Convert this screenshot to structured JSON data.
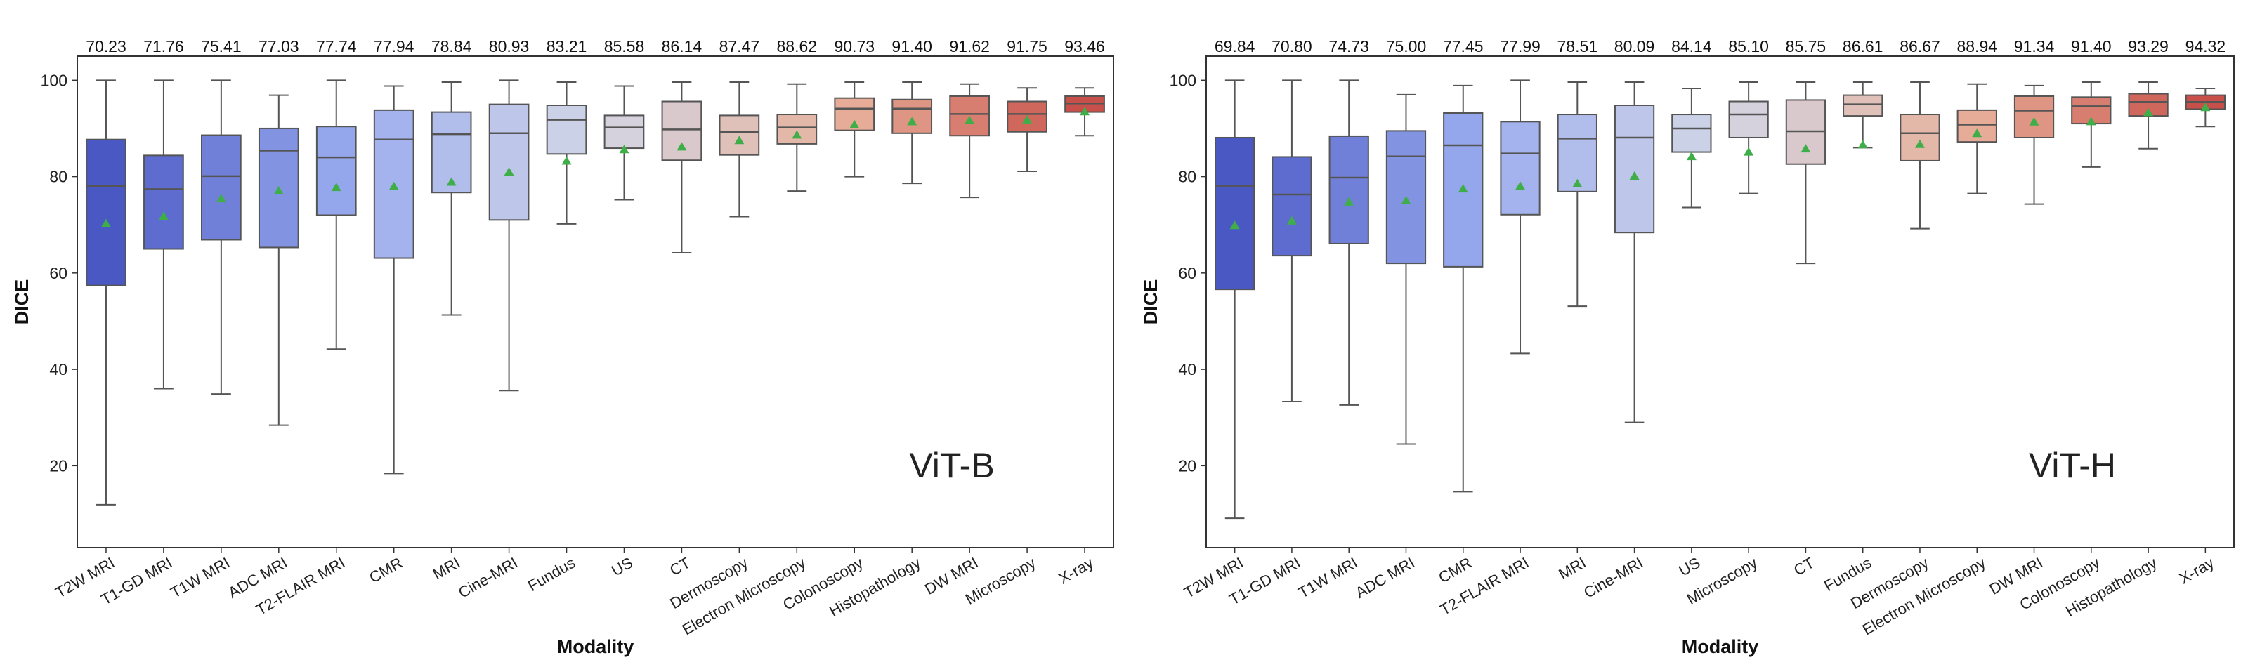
{
  "chart_data": [
    {
      "type": "box",
      "panel_label": "ViT-B",
      "xlabel": "Modality",
      "ylabel": "DICE",
      "ylim": [
        3,
        105
      ],
      "yticks": [
        20,
        40,
        60,
        80,
        100
      ],
      "color_scale": [
        "#4a58c4",
        "#9aacee",
        "#d2d6e6",
        "#e8b29c",
        "#c8504a"
      ],
      "categories": [
        "T2W MRI",
        "T1-GD MRI",
        "T1W MRI",
        "ADC MRI",
        "T2-FLAIR MRI",
        "CMR",
        "MRI",
        "Cine-MRI",
        "Fundus",
        "US",
        "CT",
        "Dermoscopy",
        "Electron Microscopy",
        "Colonoscopy",
        "Histopathology",
        "DW MRI",
        "Microscopy",
        "X-ray"
      ],
      "means": [
        "70.23",
        "71.76",
        "75.41",
        "77.03",
        "77.74",
        "77.94",
        "78.84",
        "80.93",
        "83.21",
        "85.58",
        "86.14",
        "87.47",
        "88.62",
        "90.73",
        "91.40",
        "91.62",
        "91.75",
        "93.46"
      ],
      "boxes": [
        {
          "q1": 57.4,
          "median": 78.0,
          "q3": 87.7,
          "whislo": 11.9,
          "whishi": 100
        },
        {
          "q1": 65.0,
          "median": 77.4,
          "q3": 84.4,
          "whislo": 36.0,
          "whishi": 100
        },
        {
          "q1": 66.9,
          "median": 80.1,
          "q3": 88.6,
          "whislo": 34.9,
          "whishi": 100
        },
        {
          "q1": 65.3,
          "median": 85.4,
          "q3": 90.0,
          "whislo": 28.4,
          "whishi": 96.9
        },
        {
          "q1": 72.0,
          "median": 84.0,
          "q3": 90.4,
          "whislo": 44.2,
          "whishi": 100
        },
        {
          "q1": 63.1,
          "median": 87.7,
          "q3": 93.8,
          "whislo": 18.4,
          "whishi": 98.8
        },
        {
          "q1": 76.7,
          "median": 88.8,
          "q3": 93.4,
          "whislo": 51.3,
          "whishi": 99.6
        },
        {
          "q1": 71.0,
          "median": 89.0,
          "q3": 95.0,
          "whislo": 35.6,
          "whishi": 100
        },
        {
          "q1": 84.7,
          "median": 91.8,
          "q3": 94.8,
          "whislo": 70.2,
          "whishi": 99.6
        },
        {
          "q1": 85.9,
          "median": 90.2,
          "q3": 92.7,
          "whislo": 75.2,
          "whishi": 98.8
        },
        {
          "q1": 83.4,
          "median": 89.8,
          "q3": 95.6,
          "whislo": 64.2,
          "whishi": 99.6
        },
        {
          "q1": 84.5,
          "median": 89.3,
          "q3": 92.7,
          "whislo": 71.7,
          "whishi": 99.6
        },
        {
          "q1": 86.8,
          "median": 90.2,
          "q3": 92.9,
          "whislo": 77.0,
          "whishi": 99.2
        },
        {
          "q1": 89.6,
          "median": 94.1,
          "q3": 96.3,
          "whislo": 80.0,
          "whishi": 99.6
        },
        {
          "q1": 89.0,
          "median": 94.1,
          "q3": 96.0,
          "whislo": 78.6,
          "whishi": 99.6
        },
        {
          "q1": 88.5,
          "median": 93.0,
          "q3": 96.7,
          "whislo": 75.7,
          "whishi": 99.2
        },
        {
          "q1": 89.3,
          "median": 93.0,
          "q3": 95.6,
          "whislo": 81.1,
          "whishi": 98.4
        },
        {
          "q1": 93.4,
          "median": 95.2,
          "q3": 96.7,
          "whislo": 88.5,
          "whishi": 98.4
        }
      ]
    },
    {
      "type": "box",
      "panel_label": "ViT-H",
      "xlabel": "Modality",
      "ylabel": "DICE",
      "ylim": [
        3,
        105
      ],
      "yticks": [
        20,
        40,
        60,
        80,
        100
      ],
      "color_scale": [
        "#4a58c4",
        "#9aacee",
        "#d2d6e6",
        "#e8b29c",
        "#c8504a"
      ],
      "categories": [
        "T2W MRI",
        "T1-GD MRI",
        "T1W MRI",
        "ADC MRI",
        "CMR",
        "T2-FLAIR MRI",
        "MRI",
        "Cine-MRI",
        "US",
        "Microscopy",
        "CT",
        "Fundus",
        "Dermoscopy",
        "Electron Microscopy",
        "DW MRI",
        "Colonoscopy",
        "Histopathology",
        "X-ray"
      ],
      "means": [
        "69.84",
        "70.80",
        "74.73",
        "75.00",
        "77.45",
        "77.99",
        "78.51",
        "80.09",
        "84.14",
        "85.10",
        "85.75",
        "86.61",
        "86.67",
        "88.94",
        "91.34",
        "91.40",
        "93.29",
        "94.32"
      ],
      "boxes": [
        {
          "q1": 56.6,
          "median": 78.1,
          "q3": 88.1,
          "whislo": 9.1,
          "whishi": 100
        },
        {
          "q1": 63.6,
          "median": 76.3,
          "q3": 84.1,
          "whislo": 33.3,
          "whishi": 100
        },
        {
          "q1": 66.1,
          "median": 79.8,
          "q3": 88.4,
          "whislo": 32.6,
          "whishi": 100
        },
        {
          "q1": 62.0,
          "median": 84.2,
          "q3": 89.5,
          "whislo": 24.5,
          "whishi": 97.0
        },
        {
          "q1": 61.3,
          "median": 86.5,
          "q3": 93.2,
          "whislo": 14.6,
          "whishi": 98.9
        },
        {
          "q1": 72.1,
          "median": 84.8,
          "q3": 91.4,
          "whislo": 43.3,
          "whishi": 100
        },
        {
          "q1": 76.9,
          "median": 87.9,
          "q3": 92.9,
          "whislo": 53.1,
          "whishi": 99.6
        },
        {
          "q1": 68.4,
          "median": 88.1,
          "q3": 94.8,
          "whislo": 29.0,
          "whishi": 99.6
        },
        {
          "q1": 85.1,
          "median": 90.0,
          "q3": 92.9,
          "whislo": 73.6,
          "whishi": 98.3
        },
        {
          "q1": 88.1,
          "median": 92.9,
          "q3": 95.6,
          "whislo": 76.5,
          "whishi": 99.6
        },
        {
          "q1": 82.6,
          "median": 89.4,
          "q3": 95.9,
          "whislo": 62.0,
          "whishi": 99.6
        },
        {
          "q1": 92.6,
          "median": 95.0,
          "q3": 96.9,
          "whislo": 86.0,
          "whishi": 99.6
        },
        {
          "q1": 83.3,
          "median": 89.0,
          "q3": 92.9,
          "whislo": 69.2,
          "whishi": 99.6
        },
        {
          "q1": 87.2,
          "median": 90.8,
          "q3": 93.8,
          "whislo": 76.5,
          "whishi": 99.2
        },
        {
          "q1": 88.1,
          "median": 93.7,
          "q3": 96.7,
          "whislo": 74.3,
          "whishi": 98.9
        },
        {
          "q1": 91.0,
          "median": 94.6,
          "q3": 96.5,
          "whislo": 82.0,
          "whishi": 99.6
        },
        {
          "q1": 92.6,
          "median": 95.5,
          "q3": 97.2,
          "whislo": 85.8,
          "whishi": 99.6
        },
        {
          "q1": 94.0,
          "median": 95.5,
          "q3": 96.9,
          "whislo": 90.4,
          "whishi": 98.3
        }
      ]
    }
  ]
}
